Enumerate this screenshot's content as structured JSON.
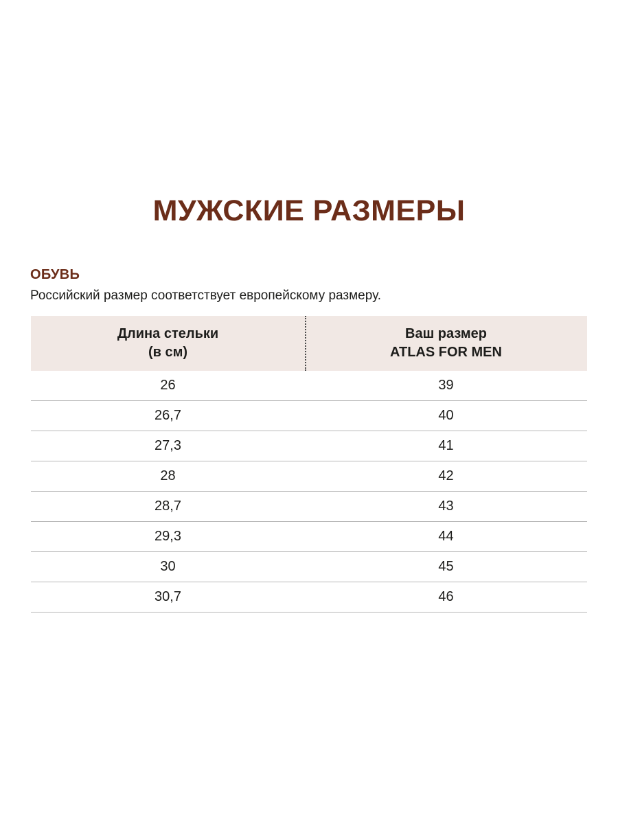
{
  "page": {
    "title": "МУЖСКИЕ РАЗМЕРЫ",
    "section": "ОБУВЬ",
    "note": "Российский размер соответствует европейскому размеру."
  },
  "colors": {
    "brown": "#6b2d19",
    "header_bg": "#f1e8e4",
    "text": "#1d1d1b",
    "divider": "#b7b7b7"
  },
  "chart_data": {
    "type": "table",
    "title": "МУЖСКИЕ РАЗМЕРЫ — ОБУВЬ",
    "columns": [
      "Длина стельки (в см)",
      "Ваш размер ATLAS FOR MEN"
    ],
    "rows": [
      [
        "26",
        "39"
      ],
      [
        "26,7",
        "40"
      ],
      [
        "27,3",
        "41"
      ],
      [
        "28",
        "42"
      ],
      [
        "28,7",
        "43"
      ],
      [
        "29,3",
        "44"
      ],
      [
        "30",
        "45"
      ],
      [
        "30,7",
        "46"
      ]
    ]
  },
  "table": {
    "header": {
      "col1_line1": "Длина стельки",
      "col1_line2": "(в см)",
      "col2_line1": "Ваш размер",
      "col2_line2": "ATLAS FOR MEN"
    },
    "rows": [
      [
        "26",
        "39"
      ],
      [
        "26,7",
        "40"
      ],
      [
        "27,3",
        "41"
      ],
      [
        "28",
        "42"
      ],
      [
        "28,7",
        "43"
      ],
      [
        "29,3",
        "44"
      ],
      [
        "30",
        "45"
      ],
      [
        "30,7",
        "46"
      ]
    ]
  }
}
